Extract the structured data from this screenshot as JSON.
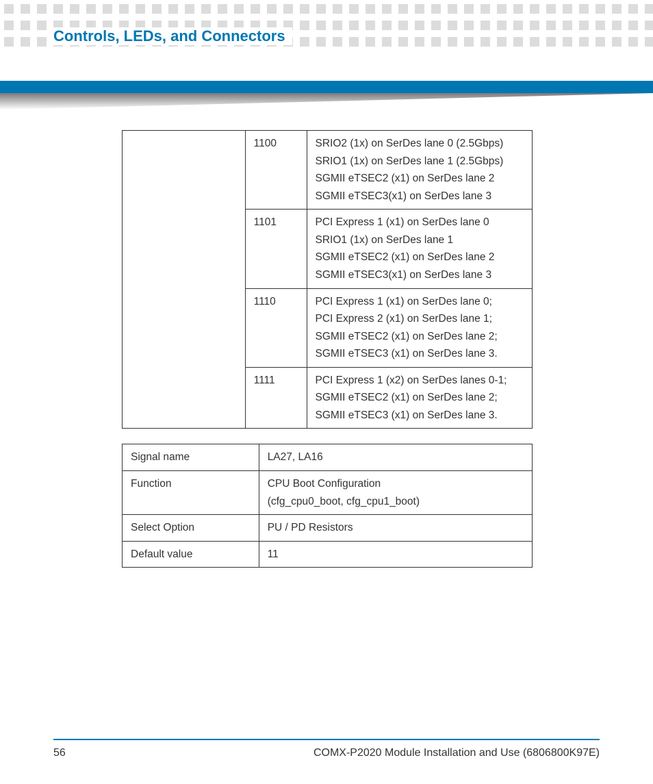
{
  "header": {
    "section_title": "Controls, LEDs, and Connectors",
    "title_color": "#0077b3",
    "bar_color": "#0077b3",
    "square_color": "#dcdcdc"
  },
  "table1": {
    "type": "table",
    "border_color": "#333333",
    "font_size": 15.5,
    "columns": [
      "spanner",
      "code",
      "description"
    ],
    "rows": [
      {
        "code": "1100",
        "desc": [
          "SRIO2 (1x) on SerDes lane 0 (2.5Gbps)",
          "SRIO1 (1x) on SerDes lane 1 (2.5Gbps)",
          "SGMII eTSEC2 (x1) on SerDes lane 2",
          "SGMII eTSEC3(x1) on SerDes lane 3"
        ]
      },
      {
        "code": "1101",
        "desc": [
          "PCI Express 1 (x1) on SerDes lane 0",
          "SRIO1 (1x) on SerDes lane 1",
          "SGMII eTSEC2 (x1) on SerDes lane 2",
          "SGMII eTSEC3(x1) on SerDes lane 3"
        ]
      },
      {
        "code": "1110",
        "desc": [
          "PCI Express 1 (x1) on SerDes lane 0;",
          "PCI Express 2 (x1) on SerDes lane 1;",
          "SGMII eTSEC2 (x1) on SerDes lane 2;",
          "SGMII eTSEC3 (x1) on SerDes lane 3."
        ]
      },
      {
        "code": "1111",
        "desc": [
          "PCI Express 1 (x2) on SerDes lanes 0-1;",
          "SGMII eTSEC2 (x1) on SerDes lane 2;",
          "SGMII eTSEC3 (x1) on SerDes lane 3."
        ]
      }
    ]
  },
  "table2": {
    "type": "table",
    "border_color": "#333333",
    "font_size": 15.5,
    "rows": [
      {
        "label": "Signal name",
        "value": [
          "LA27, LA16"
        ]
      },
      {
        "label": "Function",
        "value": [
          "CPU Boot Configuration",
          "(cfg_cpu0_boot, cfg_cpu1_boot)"
        ]
      },
      {
        "label": "Select Option",
        "value": [
          "PU / PD Resistors"
        ]
      },
      {
        "label": "Default value",
        "value": [
          "11"
        ]
      }
    ]
  },
  "footer": {
    "page_number": "56",
    "doc_title": "COMX-P2020 Module Installation and Use (6806800K97E)",
    "rule_color": "#0077b3"
  }
}
